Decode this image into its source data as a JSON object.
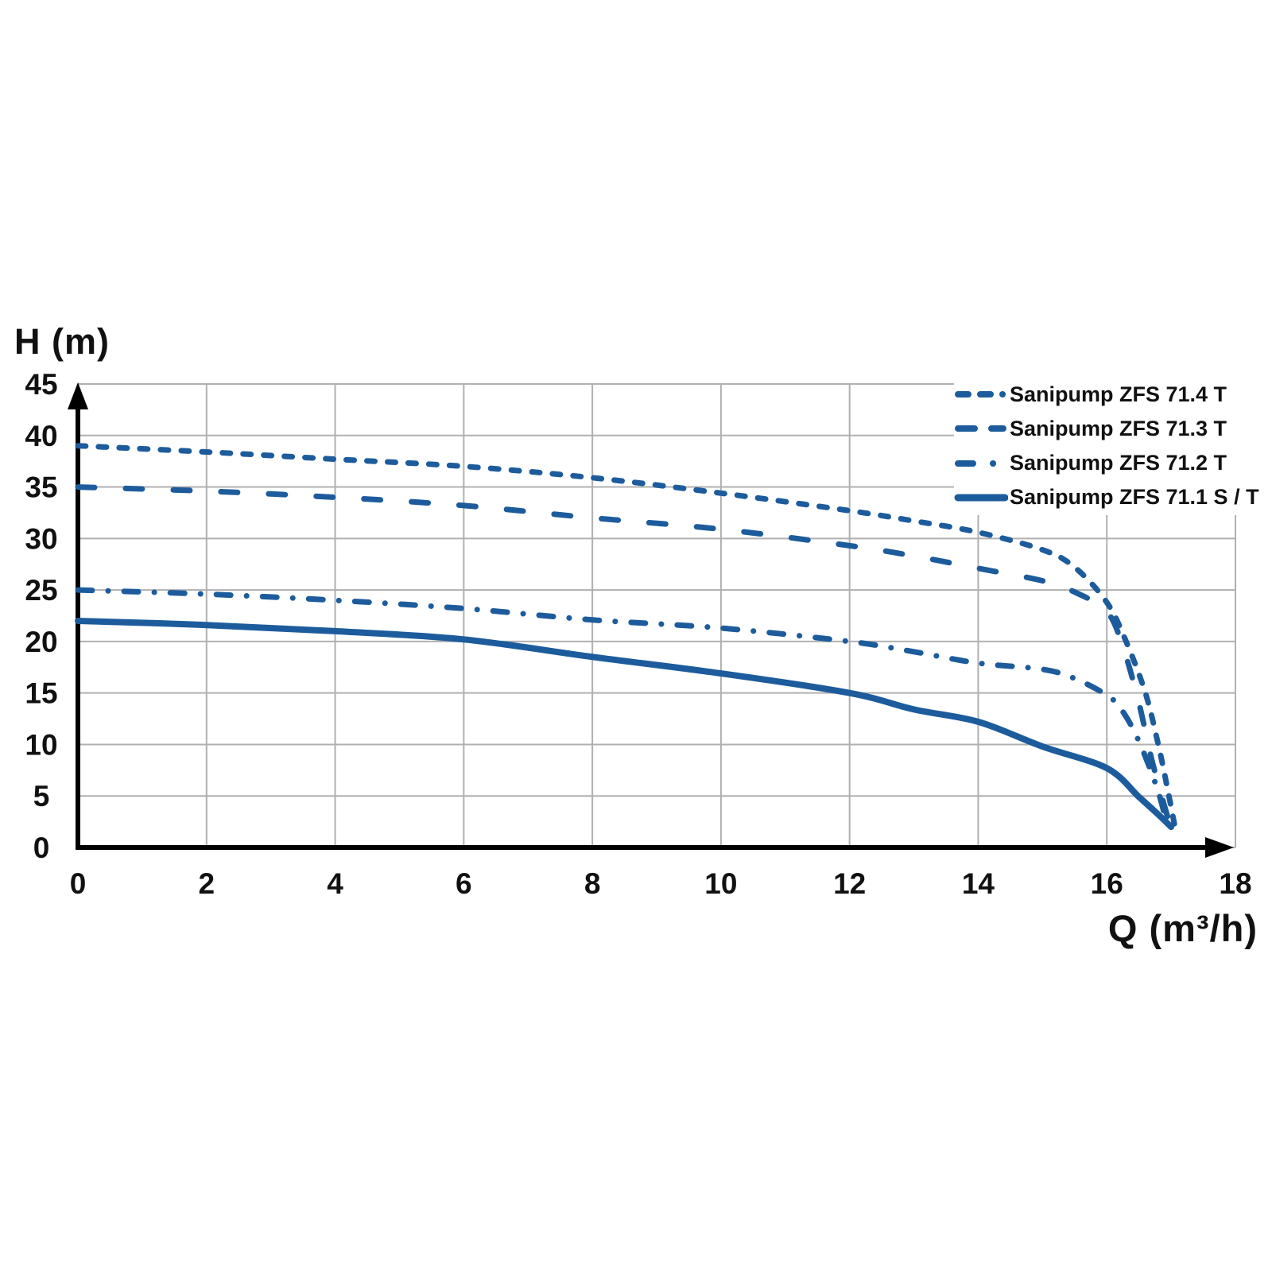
{
  "chart_data": {
    "type": "line",
    "title": "",
    "xlabel": "Q (m³/h)",
    "ylabel": "H (m)",
    "xlim": [
      0,
      18
    ],
    "ylim": [
      0,
      45
    ],
    "x_ticks": [
      0,
      2,
      4,
      6,
      8,
      10,
      12,
      14,
      16,
      18
    ],
    "y_ticks": [
      0,
      5,
      10,
      15,
      20,
      25,
      30,
      35,
      40,
      45
    ],
    "grid": true,
    "legend_position": "top-right",
    "series": [
      {
        "name": "Sanipump ZFS 71.4 T",
        "style": "dashed-short",
        "points": [
          [
            0,
            39
          ],
          [
            2,
            38.4
          ],
          [
            4,
            37.7
          ],
          [
            6,
            37
          ],
          [
            8,
            35.9
          ],
          [
            10,
            34.4
          ],
          [
            12,
            32.7
          ],
          [
            13,
            31.7
          ],
          [
            14,
            30.6
          ],
          [
            15,
            28.9
          ],
          [
            15.5,
            27.2
          ],
          [
            16,
            23.8
          ],
          [
            16.3,
            20
          ],
          [
            16.6,
            15
          ],
          [
            16.8,
            10
          ],
          [
            16.95,
            5.5
          ],
          [
            17.05,
            2.3
          ]
        ]
      },
      {
        "name": "Sanipump ZFS 71.3 T",
        "style": "dashed-long",
        "points": [
          [
            0,
            35
          ],
          [
            2,
            34.6
          ],
          [
            4,
            34
          ],
          [
            6,
            33.2
          ],
          [
            8,
            32
          ],
          [
            10,
            30.9
          ],
          [
            12,
            29.3
          ],
          [
            13,
            28.3
          ],
          [
            14,
            27.1
          ],
          [
            15,
            25.9
          ],
          [
            15.5,
            24.8
          ],
          [
            16,
            22.9
          ],
          [
            16.25,
            19.5
          ],
          [
            16.5,
            14
          ],
          [
            16.7,
            8.5
          ],
          [
            16.98,
            2.2
          ]
        ]
      },
      {
        "name": "Sanipump ZFS 71.2 T",
        "style": "dash-dot",
        "points": [
          [
            0,
            25
          ],
          [
            2,
            24.6
          ],
          [
            4,
            24
          ],
          [
            6,
            23.2
          ],
          [
            8,
            22.1
          ],
          [
            10,
            21.3
          ],
          [
            12,
            20
          ],
          [
            13,
            19
          ],
          [
            14,
            17.9
          ],
          [
            15,
            17.3
          ],
          [
            15.5,
            16.4
          ],
          [
            16,
            14.8
          ],
          [
            16.2,
            13.6
          ],
          [
            16.4,
            11.6
          ],
          [
            16.6,
            8.8
          ],
          [
            16.8,
            5.4
          ],
          [
            16.93,
            2.4
          ]
        ]
      },
      {
        "name": "Sanipump ZFS 71.1 S / T",
        "style": "solid",
        "points": [
          [
            0,
            22
          ],
          [
            2,
            21.6
          ],
          [
            4,
            21
          ],
          [
            6,
            20.2
          ],
          [
            8,
            18.5
          ],
          [
            10,
            16.9
          ],
          [
            12,
            15
          ],
          [
            13,
            13.4
          ],
          [
            14,
            12.2
          ],
          [
            15,
            9.8
          ],
          [
            16,
            7.7
          ],
          [
            16.5,
            4.9
          ],
          [
            16.8,
            3.2
          ],
          [
            17,
            2
          ]
        ]
      }
    ],
    "colors": {
      "line": "#1d5c9c",
      "grid": "#b0b0b0",
      "axis": "#000000",
      "text": "#111111",
      "background": "#ffffff"
    }
  }
}
